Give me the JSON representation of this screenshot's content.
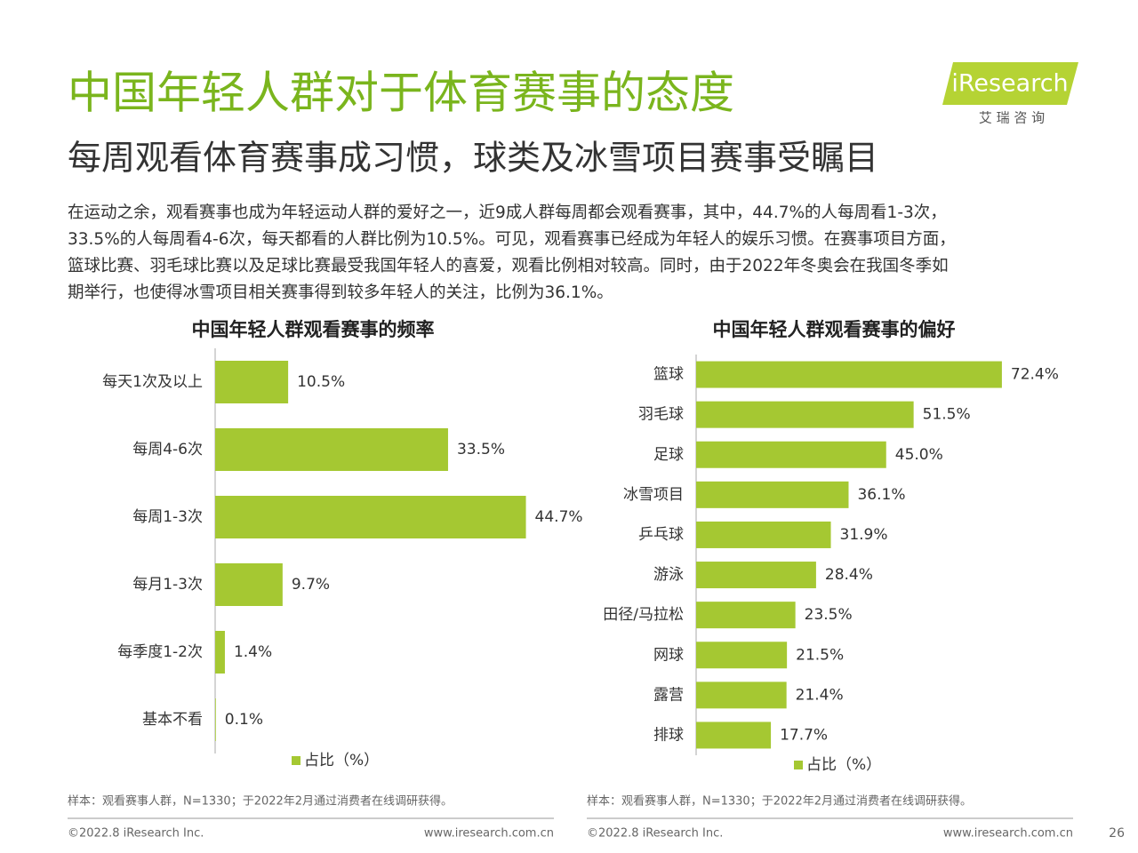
{
  "header": {
    "title": "中国年轻人群对于体育赛事的态度",
    "subtitle": "每周观看体育赛事成习惯，球类及冰雪项目赛事受瞩目",
    "logo": "iResearch",
    "logo_sub": "艾 瑞 咨 询"
  },
  "body": [
    "在运动之余，观看赛事也成为年轻运动人群的爱好之一，近9成人群每周都会观看赛事，其中，44.7%的人每周看1-3次，",
    "33.5%的人每周看4-6次，每天都看的人群比例为10.5%。可见，观看赛事已经成为年轻人的娱乐习惯。在赛事项目方面，",
    "篮球比赛、羽毛球比赛以及足球比赛最受我国年轻人的喜爱，观看比例相对较高。同时，由于2022年冬奥会在我国冬季如",
    "期举行，也使得冰雪项目相关赛事得到较多年轻人的关注，比例为36.1%。"
  ],
  "chart_data": [
    {
      "type": "bar",
      "orientation": "horizontal",
      "title": "中国年轻人群观看赛事的频率",
      "categories": [
        "每天1次及以上",
        "每周4-6次",
        "每周1-3次",
        "每月1-3次",
        "每季度1-2次",
        "基本不看"
      ],
      "series": [
        {
          "name": "占比（%）",
          "color": "#a5c832",
          "values": [
            10.5,
            33.5,
            44.7,
            9.7,
            1.4,
            0.1
          ]
        }
      ],
      "value_labels": [
        "10.5%",
        "33.5%",
        "44.7%",
        "9.7%",
        "1.4%",
        "0.1%"
      ],
      "xlim": [
        0,
        50
      ],
      "note": "样本：观看赛事人群，N=1330；于2022年2月通过消费者在线调研获得。"
    },
    {
      "type": "bar",
      "orientation": "horizontal",
      "title": "中国年轻人群观看赛事的偏好",
      "categories": [
        "篮球",
        "羽毛球",
        "足球",
        "冰雪项目",
        "乒乓球",
        "游泳",
        "田径/马拉松",
        "网球",
        "露营",
        "排球"
      ],
      "series": [
        {
          "name": "占比（%）",
          "color": "#a5c832",
          "values": [
            72.4,
            51.5,
            45.0,
            36.1,
            31.9,
            28.4,
            23.5,
            21.5,
            21.4,
            17.7
          ]
        }
      ],
      "value_labels": [
        "72.4%",
        "51.5%",
        "45.0%",
        "36.1%",
        "31.9%",
        "28.4%",
        "23.5%",
        "21.5%",
        "21.4%",
        "17.7%"
      ],
      "xlim": [
        0,
        80
      ],
      "note": "样本：观看赛事人群，N=1330；于2022年2月通过消费者在线调研获得。"
    }
  ],
  "footer": {
    "copyright": "©2022.8 iResearch Inc.",
    "url": "www.iresearch.com.cn",
    "page": "26"
  }
}
